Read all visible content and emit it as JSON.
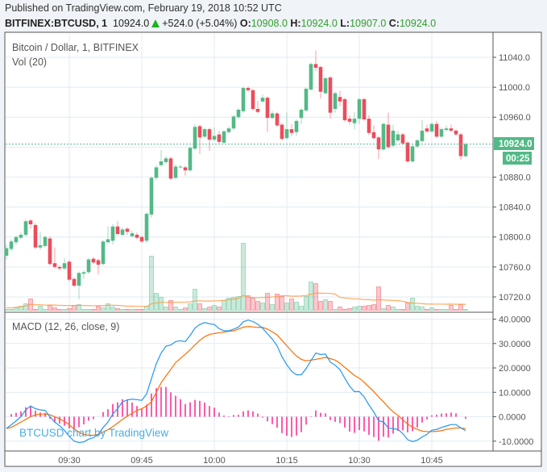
{
  "header": {
    "published": "Published on TradingView.com, February 19, 2018 10:52 UTC",
    "symbol": "BITFINEX:BTCUSD, 1",
    "last": "10924.0",
    "change": "+524.0 (+5.04%)",
    "o_label": "O:",
    "o": "10908.0",
    "h_label": "H:",
    "h": "10924.0",
    "l_label": "L:",
    "l": "10907.0",
    "c_label": "C:",
    "c": "10924.0"
  },
  "chart_data": [
    {
      "type": "candlestick",
      "title": "Bitcoin / Dollar, 1, BITFINEX",
      "volume_label": "Vol (20)",
      "x_ticks": [
        "09:30",
        "09:45",
        "10:00",
        "10:15",
        "10:30",
        "10:45"
      ],
      "first_bar_time": "09:17",
      "bar_interval_minutes": 1,
      "y_ticks": [
        "11040.0",
        "11000.0",
        "10960.0",
        "10880.0",
        "10840.0",
        "10800.0",
        "10760.0",
        "10720.0"
      ],
      "ylim": [
        10705,
        11075
      ],
      "last_price_label": "10924.0",
      "countdown_label": "00:25",
      "grid": true,
      "colors": {
        "up": "#53b987",
        "down": "#eb4d5c",
        "vol_ma": "#ff9b45",
        "last_price": "#53b987"
      },
      "ohlc": [
        [
          10775,
          10790,
          10770,
          10785
        ],
        [
          10784,
          10797,
          10781,
          10794
        ],
        [
          10793,
          10802,
          10790,
          10800
        ],
        [
          10799,
          10806,
          10797,
          10803
        ],
        [
          10803,
          10824,
          10801,
          10821
        ],
        [
          10822,
          10824,
          10811,
          10817
        ],
        [
          10816,
          10818,
          10784,
          10786
        ],
        [
          10786,
          10806,
          10783,
          10789
        ],
        [
          10788,
          10802,
          10786,
          10800
        ],
        [
          10798,
          10801,
          10762,
          10764
        ],
        [
          10765,
          10786,
          10758,
          10760
        ],
        [
          10760,
          10762,
          10756,
          10758
        ],
        [
          10758,
          10772,
          10756,
          10765
        ],
        [
          10767,
          10769,
          10741,
          10743
        ],
        [
          10744,
          10746,
          10733,
          10735
        ],
        [
          10735,
          10754,
          10717,
          10752
        ],
        [
          10751,
          10755,
          10744,
          10753
        ],
        [
          10753,
          10772,
          10751,
          10770
        ],
        [
          10771,
          10773,
          10764,
          10766
        ],
        [
          10769,
          10771,
          10750,
          10763
        ],
        [
          10764,
          10796,
          10762,
          10794
        ],
        [
          10793,
          10814,
          10791,
          10797
        ],
        [
          10795,
          10817,
          10790,
          10814
        ],
        [
          10814,
          10821,
          10802,
          10804
        ],
        [
          10803,
          10813,
          10801,
          10810
        ],
        [
          10811,
          10813,
          10803,
          10807
        ],
        [
          10801,
          10808,
          10799,
          10805
        ],
        [
          10803,
          10806,
          10797,
          10799
        ],
        [
          10800,
          10802,
          10792,
          10794
        ],
        [
          10795,
          10833,
          10792,
          10831
        ],
        [
          10830,
          10881,
          10826,
          10879
        ],
        [
          10879,
          10896,
          10876,
          10893
        ],
        [
          10896,
          10916,
          10894,
          10901
        ],
        [
          10900,
          10908,
          10898,
          10905
        ],
        [
          10905,
          10907,
          10876,
          10878
        ],
        [
          10879,
          10897,
          10877,
          10894
        ],
        [
          10893,
          10896,
          10892,
          10894
        ],
        [
          10893,
          10895,
          10882,
          10889
        ],
        [
          10889,
          10921,
          10887,
          10919
        ],
        [
          10918,
          10950,
          10916,
          10947
        ],
        [
          10948,
          10950,
          10911,
          10933
        ],
        [
          10934,
          10946,
          10932,
          10944
        ],
        [
          10944,
          10946,
          10915,
          10930
        ],
        [
          10930,
          10946,
          10928,
          10935
        ],
        [
          10937,
          10942,
          10925,
          10927
        ],
        [
          10926,
          10943,
          10924,
          10941
        ],
        [
          10940,
          10948,
          10938,
          10945
        ],
        [
          10945,
          10963,
          10943,
          10961
        ],
        [
          10960,
          10972,
          10958,
          10970
        ],
        [
          10968,
          11001,
          10966,
          10999
        ],
        [
          10999,
          11001,
          10994,
          10996
        ],
        [
          10996,
          10998,
          10969,
          10971
        ],
        [
          10971,
          10982,
          10965,
          10967
        ],
        [
          10981,
          10990,
          10979,
          10986
        ],
        [
          10986,
          10988,
          10940,
          10959
        ],
        [
          10959,
          10968,
          10957,
          10965
        ],
        [
          10965,
          10967,
          10947,
          10949
        ],
        [
          10950,
          10952,
          10929,
          10931
        ],
        [
          10932,
          10966,
          10930,
          10944
        ],
        [
          10944,
          10951,
          10935,
          10939
        ],
        [
          10940,
          10957,
          10935,
          10955
        ],
        [
          10959,
          10972,
          10951,
          10970
        ],
        [
          10969,
          11000,
          10967,
          10998
        ],
        [
          10997,
          11033,
          10995,
          11031
        ],
        [
          11031,
          11049,
          11022,
          11026
        ],
        [
          11027,
          11029,
          10985,
          10994
        ],
        [
          10992,
          11014,
          10990,
          11012
        ],
        [
          11013,
          11015,
          10958,
          10966
        ],
        [
          10971,
          10994,
          10966,
          10992
        ],
        [
          10987,
          10995,
          10975,
          10981
        ],
        [
          10984,
          10986,
          10954,
          10956
        ],
        [
          10958,
          10962,
          10950,
          10954
        ],
        [
          10952,
          10967,
          10944,
          10958
        ],
        [
          10958,
          10986,
          10951,
          10984
        ],
        [
          10984,
          10986,
          10955,
          10957
        ],
        [
          10958,
          10963,
          10936,
          10939
        ],
        [
          10940,
          10949,
          10930,
          10932
        ],
        [
          10933,
          10935,
          10904,
          10917
        ],
        [
          10917,
          10953,
          10915,
          10951
        ],
        [
          10950,
          10966,
          10918,
          10920
        ],
        [
          10922,
          10950,
          10920,
          10942
        ],
        [
          10929,
          10942,
          10927,
          10937
        ],
        [
          10937,
          10939,
          10923,
          10925
        ],
        [
          10926,
          10928,
          10899,
          10901
        ],
        [
          10901,
          10923,
          10899,
          10921
        ],
        [
          10921,
          10931,
          10919,
          10929
        ],
        [
          10928,
          10956,
          10926,
          10942
        ],
        [
          10945,
          10950,
          10939,
          10941
        ],
        [
          10941,
          10953,
          10939,
          10951
        ],
        [
          10951,
          10955,
          10932,
          10934
        ],
        [
          10934,
          10946,
          10932,
          10944
        ],
        [
          10943,
          10949,
          10941,
          10945
        ],
        [
          10945,
          10950,
          10940,
          10942
        ],
        [
          10942,
          10944,
          10935,
          10937
        ],
        [
          10937,
          10939,
          10903,
          10908
        ],
        [
          10908,
          10926,
          10906,
          10924
        ]
      ],
      "volume": [
        1,
        1,
        3,
        5,
        8,
        14,
        1,
        5,
        1,
        6,
        3,
        1,
        1,
        2,
        6,
        7,
        1,
        1,
        1,
        5,
        3,
        8,
        4,
        2,
        1,
        1,
        1,
        1,
        1,
        5,
        67,
        21,
        16,
        4,
        12,
        4,
        1,
        3,
        8,
        26,
        8,
        2,
        4,
        6,
        4,
        12,
        15,
        16,
        17,
        83,
        18,
        15,
        11,
        9,
        21,
        7,
        20,
        17,
        9,
        14,
        10,
        5,
        17,
        35,
        33,
        11,
        13,
        11,
        1,
        4,
        1,
        2,
        4,
        5,
        5,
        6,
        7,
        29,
        2,
        6,
        4,
        1,
        1,
        9,
        15,
        5,
        4,
        1,
        3,
        1,
        1,
        1,
        6,
        1,
        7,
        1
      ]
    },
    {
      "type": "line",
      "title": "MACD (12, 26, close, 9)",
      "y_ticks": [
        "40.0000",
        "30.0000",
        "20.0000",
        "10.0000",
        "0.0000",
        "-10.0000"
      ],
      "ylim": [
        -14,
        43
      ],
      "colors": {
        "macd": "#2196f3",
        "signal": "#ff6d00",
        "histogram": "#ff0080"
      },
      "macd": [
        -4.8,
        -3.3,
        -1.7,
        0,
        2.8,
        4.4,
        3.3,
        2.8,
        2.6,
        0,
        -2.2,
        -3.7,
        -5.6,
        -8.1,
        -10,
        -10.6,
        -10.3,
        -9.2,
        -8.6,
        -7.2,
        -4.4,
        -2.2,
        1.1,
        3.3,
        6.1,
        6.9,
        7.2,
        7,
        6.7,
        9.4,
        15.6,
        21.7,
        26.1,
        28.9,
        29.4,
        30.8,
        31.1,
        30.8,
        33.3,
        36.3,
        37.8,
        38.6,
        38.1,
        37.8,
        36.1,
        35.2,
        35.2,
        35.9,
        36.7,
        38.9,
        39.6,
        39,
        37.9,
        36.2,
        34,
        31.8,
        29,
        24.6,
        21.3,
        18.6,
        17.2,
        17.2,
        19.7,
        23,
        26.1,
        25.5,
        25.7,
        22.4,
        21.1,
        19.3,
        15.8,
        12.5,
        10.3,
        10.3,
        8.1,
        4.8,
        2,
        -1.7,
        -2.1,
        -4.6,
        -4.9,
        -5.2,
        -6.9,
        -9.4,
        -10.2,
        -9.6,
        -8.3,
        -7.2,
        -5.5,
        -5.2,
        -4.4,
        -3.8,
        -3.2,
        -3.2,
        -4.6,
        -5.7
      ],
      "signal": [
        -4.8,
        -4.4,
        -3.3,
        -2.2,
        -1.1,
        0,
        0.8,
        1.1,
        1.1,
        0.8,
        0,
        -0.9,
        -1.9,
        -3.3,
        -5,
        -6.3,
        -7.2,
        -7.6,
        -7.6,
        -7.2,
        -6.3,
        -5.3,
        -4.1,
        -2.6,
        -1.1,
        0.2,
        1.4,
        2.6,
        3.3,
        4.4,
        6.1,
        10,
        13.9,
        16.7,
        19.4,
        22.2,
        23.9,
        25.6,
        27.4,
        29.4,
        31.3,
        32.8,
        33.7,
        34.1,
        34.4,
        34.7,
        35,
        35.2,
        35.9,
        36.7,
        37,
        36.8,
        36.6,
        36.6,
        35.9,
        34.8,
        33.5,
        31.3,
        29.1,
        26.9,
        24.9,
        23.5,
        22.9,
        23.2,
        23.5,
        23.9,
        24.3,
        23.8,
        23.2,
        21.9,
        20.2,
        18.6,
        16.9,
        15.8,
        14.1,
        12.2,
        10.3,
        8.1,
        6.1,
        3.9,
        2,
        0.6,
        -1.3,
        -3,
        -4.3,
        -5.2,
        -5.9,
        -6.1,
        -6.1,
        -6,
        -5.7,
        -5.2,
        -4.9,
        -4.6,
        -4.6,
        -4.9
      ]
    }
  ],
  "watermark": "BTCUSD chart by TradingView"
}
